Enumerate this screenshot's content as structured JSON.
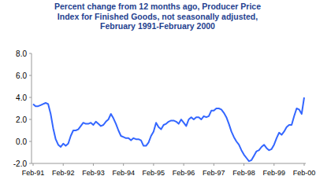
{
  "chart_data": {
    "type": "line",
    "title": "Percent change from 12 months ago, Producer Price\nIndex for Finished Goods, not seasonally adjusted,\nFebruary 1991-February 2000",
    "categories": [
      "Feb-91",
      null,
      null,
      null,
      null,
      null,
      null,
      null,
      null,
      null,
      null,
      null,
      "Feb-92",
      null,
      null,
      null,
      null,
      null,
      null,
      null,
      null,
      null,
      null,
      null,
      "Feb-93",
      null,
      null,
      null,
      null,
      null,
      null,
      null,
      null,
      null,
      null,
      null,
      "Feb-94",
      null,
      null,
      null,
      null,
      null,
      null,
      null,
      null,
      null,
      null,
      null,
      "Feb-95",
      null,
      null,
      null,
      null,
      null,
      null,
      null,
      null,
      null,
      null,
      null,
      "Feb-96",
      null,
      null,
      null,
      null,
      null,
      null,
      null,
      null,
      null,
      null,
      null,
      "Feb-97",
      null,
      null,
      null,
      null,
      null,
      null,
      null,
      null,
      null,
      null,
      null,
      "Feb-98",
      null,
      null,
      null,
      null,
      null,
      null,
      null,
      null,
      null,
      null,
      null,
      "Feb-99",
      null,
      null,
      null,
      null,
      null,
      null,
      null,
      null,
      null,
      null,
      null,
      "Feb-00"
    ],
    "values": [
      3.4,
      3.2,
      3.2,
      3.3,
      3.4,
      3.5,
      3.4,
      2.5,
      1.2,
      0.2,
      -0.3,
      -0.5,
      -0.2,
      -0.4,
      -0.2,
      0.5,
      1.0,
      1.0,
      1.1,
      1.4,
      1.7,
      1.6,
      1.6,
      1.7,
      1.5,
      1.8,
      1.6,
      1.4,
      1.5,
      1.8,
      2.0,
      2.5,
      2.1,
      1.6,
      1.0,
      0.5,
      0.4,
      0.3,
      0.3,
      0.1,
      0.3,
      0.2,
      0.2,
      0.1,
      -0.4,
      -0.4,
      -0.1,
      0.5,
      0.9,
      1.7,
      1.3,
      1.1,
      1.5,
      1.6,
      1.8,
      1.9,
      1.9,
      1.8,
      1.6,
      2.0,
      1.7,
      1.4,
      2.0,
      2.2,
      2.0,
      2.2,
      2.2,
      2.0,
      2.3,
      2.2,
      2.3,
      2.8,
      2.8,
      3.0,
      3.0,
      2.9,
      2.6,
      2.2,
      1.6,
      0.9,
      0.4,
      0.0,
      -0.3,
      -0.8,
      -1.2,
      -1.5,
      -1.8,
      -1.7,
      -1.3,
      -0.9,
      -0.8,
      -0.5,
      -0.3,
      -0.6,
      -0.8,
      -0.7,
      -0.3,
      0.3,
      0.8,
      0.6,
      0.9,
      1.3,
      1.5,
      1.5,
      2.3,
      3.0,
      2.9,
      2.5,
      4.0
    ],
    "color": "#3366ff",
    "ylim": [
      -2,
      8
    ],
    "yticks": [
      {
        "value": -2,
        "label": "-2.0"
      },
      {
        "value": 0,
        "label": "0.0"
      },
      {
        "value": 2,
        "label": "2.0"
      },
      {
        "value": 4,
        "label": "4.0"
      },
      {
        "value": 6,
        "label": "6.0"
      },
      {
        "value": 8,
        "label": "8.0"
      }
    ],
    "grid": false
  }
}
